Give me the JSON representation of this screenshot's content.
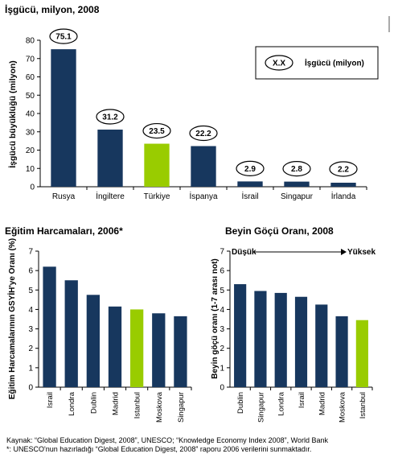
{
  "colors": {
    "bar": "#17375e",
    "highlight": "#99cc00",
    "axis": "#000000"
  },
  "chart_data": [
    {
      "type": "bar",
      "title": "İşgücü, milyon, 2008",
      "ylabel": "İşgücü büyüklüğü (milyon)",
      "categories": [
        "Rusya",
        "İngiltere",
        "Türkiye",
        "İspanya",
        "İsrail",
        "Singapur",
        "İrlanda"
      ],
      "values": [
        75.1,
        31.2,
        23.5,
        22.2,
        2.9,
        2.8,
        2.2
      ],
      "value_labels": [
        "75.1",
        "31.2",
        "23.5",
        "22.2",
        "2.9",
        "2.8",
        "2.2"
      ],
      "highlight": "Türkiye",
      "ylim": [
        0,
        80
      ],
      "yticks": [
        "0",
        "10",
        "20",
        "30",
        "40",
        "50",
        "60",
        "70",
        "80"
      ],
      "legend": {
        "marker": "X.X",
        "label": "İşgücü (milyon)",
        "position": "top-right"
      },
      "grid": false
    },
    {
      "type": "bar",
      "title": "Eğitim Harcamaları, 2006*",
      "ylabel": "Eğitim Harcamalarının GSYİH'ye Oranı (%)",
      "categories": [
        "Israil",
        "Londra",
        "Dublin",
        "Madrid",
        "Istanbul",
        "Moskova",
        "Singapur"
      ],
      "values": [
        6.2,
        5.5,
        4.75,
        4.15,
        4.0,
        3.8,
        3.65
      ],
      "highlight": "Istanbul",
      "ylim": [
        0,
        7
      ],
      "yticks": [
        "0",
        "1",
        "2",
        "3",
        "4",
        "5",
        "6",
        "7"
      ],
      "grid": false
    },
    {
      "type": "bar",
      "title": "Beyin Göçü Oranı, 2008",
      "ylabel": "Beyin göçü oranı (1-7 arası not)",
      "categories": [
        "Dublin",
        "Singapur",
        "Londra",
        "Israil",
        "Madrid",
        "Moskova",
        "Istanbul"
      ],
      "values": [
        5.3,
        4.95,
        4.85,
        4.65,
        4.25,
        3.65,
        3.45
      ],
      "highlight": "Istanbul",
      "ylim": [
        0,
        7
      ],
      "yticks": [
        "0",
        "1",
        "2",
        "3",
        "4",
        "5",
        "6",
        "7"
      ],
      "annotations": {
        "low": "Düşük",
        "high": "Yüksek"
      },
      "grid": false
    }
  ],
  "footer": {
    "source": "Kaynak:  “Global Education Digest, 2008”, UNESCO; “Knowledge Economy Index 2008”, World Bank",
    "note": "*:   UNESCO'nun hazırladığı “Global Education Digest, 2008” raporu 2006 verilerini sunmaktadır."
  }
}
